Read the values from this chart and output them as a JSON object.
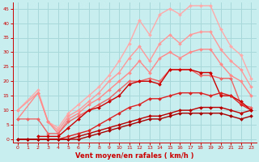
{
  "xlabel": "Vent moyen/en rafales ( km/h )",
  "xlabel_color": "#cc0000",
  "bg_color": "#c8eef0",
  "grid_color": "#a8d8da",
  "axis_color": "#cc0000",
  "tick_color": "#cc0000",
  "ylim": [
    -1,
    47
  ],
  "xlim": [
    -0.5,
    23.5
  ],
  "yticks": [
    0,
    5,
    10,
    15,
    20,
    25,
    30,
    35,
    40,
    45
  ],
  "xticks": [
    0,
    1,
    2,
    3,
    4,
    5,
    6,
    7,
    8,
    9,
    10,
    11,
    12,
    13,
    14,
    15,
    16,
    17,
    18,
    19,
    20,
    21,
    22,
    23
  ],
  "lines": [
    {
      "x": [
        0,
        2,
        3,
        4,
        5,
        6,
        7,
        8,
        9,
        10,
        11,
        12,
        13,
        14,
        15,
        16,
        17,
        18,
        19,
        20,
        21,
        22,
        23
      ],
      "y": [
        10,
        17,
        6,
        4,
        9,
        12,
        15,
        18,
        22,
        27,
        33,
        41,
        36,
        43,
        45,
        43,
        46,
        46,
        46,
        38,
        32,
        29,
        21
      ],
      "color": "#ffaaaa",
      "lw": 1.0,
      "marker": "D",
      "ms": 2.0
    },
    {
      "x": [
        0,
        2,
        3,
        4,
        5,
        6,
        7,
        8,
        9,
        10,
        11,
        12,
        13,
        14,
        15,
        16,
        17,
        18,
        19,
        20,
        21,
        22,
        23
      ],
      "y": [
        10,
        16,
        6,
        3,
        8,
        10,
        13,
        16,
        20,
        23,
        28,
        32,
        27,
        33,
        36,
        33,
        36,
        37,
        37,
        31,
        27,
        24,
        18
      ],
      "color": "#ff9999",
      "lw": 1.0,
      "marker": "D",
      "ms": 2.0
    },
    {
      "x": [
        0,
        2,
        3,
        4,
        5,
        6,
        7,
        8,
        9,
        10,
        11,
        12,
        13,
        14,
        15,
        16,
        17,
        18,
        19,
        20,
        21,
        22,
        23
      ],
      "y": [
        7,
        16,
        6,
        2,
        7,
        9,
        12,
        14,
        17,
        20,
        23,
        27,
        23,
        28,
        30,
        28,
        30,
        31,
        31,
        26,
        22,
        20,
        15
      ],
      "color": "#ff8888",
      "lw": 1.0,
      "marker": "D",
      "ms": 2.0
    },
    {
      "x": [
        0,
        1,
        2,
        3,
        4,
        5,
        6,
        7,
        8,
        9,
        10,
        11,
        12,
        13,
        14,
        15,
        16,
        17,
        18,
        19,
        20,
        21,
        22,
        23
      ],
      "y": [
        7,
        7,
        7,
        2,
        2,
        6,
        8,
        10,
        12,
        14,
        17,
        20,
        20,
        21,
        20,
        24,
        24,
        24,
        22,
        22,
        21,
        21,
        12,
        11
      ],
      "color": "#ee6666",
      "lw": 1.0,
      "marker": "D",
      "ms": 2.0
    },
    {
      "x": [
        2,
        3,
        4,
        5,
        6,
        7,
        8,
        9,
        10,
        11,
        12,
        13,
        14,
        15,
        16,
        17,
        18,
        19,
        20,
        21,
        22,
        23
      ],
      "y": [
        1,
        1,
        1,
        4,
        7,
        10,
        11,
        13,
        15,
        19,
        20,
        20,
        19,
        24,
        24,
        24,
        23,
        23,
        15,
        15,
        13,
        10
      ],
      "color": "#cc0000",
      "lw": 1.0,
      "marker": "D",
      "ms": 2.0
    },
    {
      "x": [
        0,
        1,
        2,
        3,
        4,
        5,
        6,
        7,
        8,
        9,
        10,
        11,
        12,
        13,
        14,
        15,
        16,
        17,
        18,
        19,
        20,
        21,
        22,
        23
      ],
      "y": [
        0,
        0,
        0,
        0,
        0,
        1,
        2,
        3,
        5,
        7,
        9,
        11,
        12,
        14,
        14,
        15,
        16,
        16,
        16,
        15,
        16,
        15,
        12,
        10
      ],
      "color": "#dd2222",
      "lw": 1.0,
      "marker": "D",
      "ms": 2.0
    },
    {
      "x": [
        0,
        1,
        2,
        3,
        4,
        5,
        6,
        7,
        8,
        9,
        10,
        11,
        12,
        13,
        14,
        15,
        16,
        17,
        18,
        19,
        20,
        21,
        22,
        23
      ],
      "y": [
        0,
        0,
        0,
        0,
        0,
        0,
        1,
        2,
        3,
        4,
        5,
        6,
        7,
        8,
        8,
        9,
        10,
        10,
        11,
        11,
        11,
        10,
        9,
        10
      ],
      "color": "#bb0000",
      "lw": 1.0,
      "marker": "D",
      "ms": 2.0
    },
    {
      "x": [
        0,
        1,
        2,
        3,
        4,
        5,
        6,
        7,
        8,
        9,
        10,
        11,
        12,
        13,
        14,
        15,
        16,
        17,
        18,
        19,
        20,
        21,
        22,
        23
      ],
      "y": [
        0,
        0,
        0,
        0,
        0,
        0,
        0,
        1,
        2,
        3,
        4,
        5,
        6,
        7,
        7,
        8,
        9,
        9,
        9,
        9,
        9,
        8,
        7,
        8
      ],
      "color": "#aa0000",
      "lw": 1.0,
      "marker": "D",
      "ms": 2.0
    }
  ]
}
